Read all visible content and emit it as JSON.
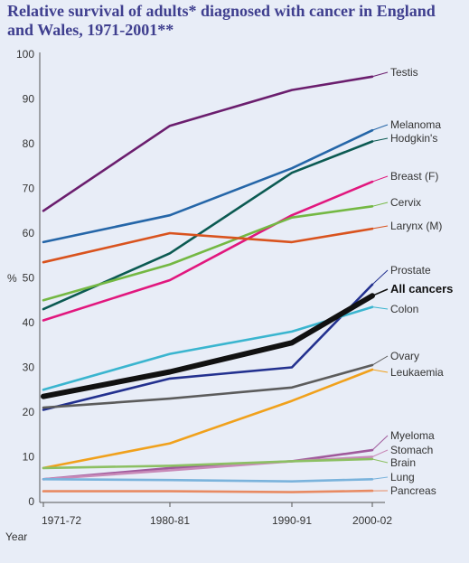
{
  "chart_data": {
    "type": "line",
    "title": "Relative survival of adults* diagnosed with cancer in England and Wales, 1971-2001**",
    "xlabel": "Year",
    "ylabel": "%",
    "ylim": [
      0,
      100
    ],
    "yticks": [
      "0",
      "10",
      "20",
      "30",
      "40",
      "50",
      "60",
      "70",
      "80",
      "90",
      "100"
    ],
    "categories": [
      "1971-72",
      "1980-81",
      "1990-91",
      "2000-02"
    ],
    "grid": false,
    "series": [
      {
        "name": "Testis",
        "color": "#6b1e6e",
        "values": [
          65,
          84,
          92,
          95
        ]
      },
      {
        "name": "Melanoma",
        "color": "#2566a8",
        "values": [
          58,
          64,
          74.5,
          83
        ]
      },
      {
        "name": "Hodgkin's",
        "color": "#0b5a52",
        "values": [
          43,
          55.5,
          73.5,
          80.5
        ]
      },
      {
        "name": "Breast (F)",
        "color": "#e1177e",
        "values": [
          40.5,
          49.5,
          64,
          71.5
        ]
      },
      {
        "name": "Cervix",
        "color": "#74b843",
        "values": [
          45,
          53,
          63.5,
          66
        ]
      },
      {
        "name": "Larynx (M)",
        "color": "#d9531e",
        "values": [
          53.5,
          60,
          58,
          61
        ]
      },
      {
        "name": "Prostate",
        "color": "#23318f",
        "values": [
          20.5,
          27.5,
          30,
          48.5
        ]
      },
      {
        "name": "All cancers",
        "color": "#111111",
        "values": [
          23.5,
          29,
          35.5,
          46
        ]
      },
      {
        "name": "Colon",
        "color": "#3ab5cf",
        "values": [
          25,
          33,
          38,
          43.5
        ]
      },
      {
        "name": "Ovary",
        "color": "#5c5c5c",
        "values": [
          21,
          23,
          25.5,
          30.5
        ]
      },
      {
        "name": "Leukaemia",
        "color": "#f0a11c",
        "values": [
          7.5,
          13,
          22.5,
          29.5
        ]
      },
      {
        "name": "Myeloma",
        "color": "#a05a9c",
        "values": [
          5,
          7.5,
          9,
          11.5
        ]
      },
      {
        "name": "Stomach",
        "color": "#c88ab8",
        "values": [
          5,
          7,
          9,
          10
        ]
      },
      {
        "name": "Brain",
        "color": "#8cc063",
        "values": [
          7.5,
          8,
          9,
          9.5
        ]
      },
      {
        "name": "Lung",
        "color": "#7ab3dc",
        "values": [
          5,
          4.8,
          4.5,
          5
        ]
      },
      {
        "name": "Pancreas",
        "color": "#e88a62",
        "values": [
          2.3,
          2.3,
          2.1,
          2.4
        ]
      }
    ],
    "bold_series": "All cancers"
  }
}
